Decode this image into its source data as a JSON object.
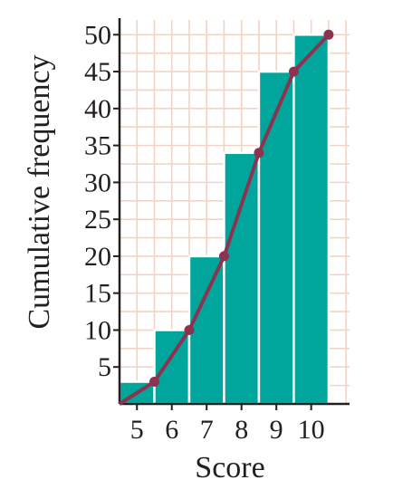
{
  "chart_data": {
    "type": "bar",
    "subtype": "cumulative-frequency-histogram-with-ogive",
    "title": "",
    "xlabel": "Score",
    "ylabel": "Cumulative frequency",
    "categories": [
      "5",
      "6",
      "7",
      "8",
      "9",
      "10"
    ],
    "values": [
      3,
      10,
      20,
      34,
      45,
      50
    ],
    "ogive": {
      "x": [
        4.5,
        5.5,
        6.5,
        7.5,
        8.5,
        9.5,
        10.5
      ],
      "y": [
        0,
        3,
        10,
        20,
        34,
        45,
        50
      ]
    },
    "xlim": [
      4.5,
      11.1
    ],
    "ylim": [
      0,
      52
    ],
    "yticks": [
      5,
      10,
      15,
      20,
      25,
      30,
      35,
      40,
      45,
      50
    ],
    "grid": true,
    "colors": {
      "bar": "#00a69c",
      "bar_edge": "#ffffff",
      "line": "#8b3350",
      "grid": "#f2d4c6",
      "axis": "#231f20"
    }
  }
}
